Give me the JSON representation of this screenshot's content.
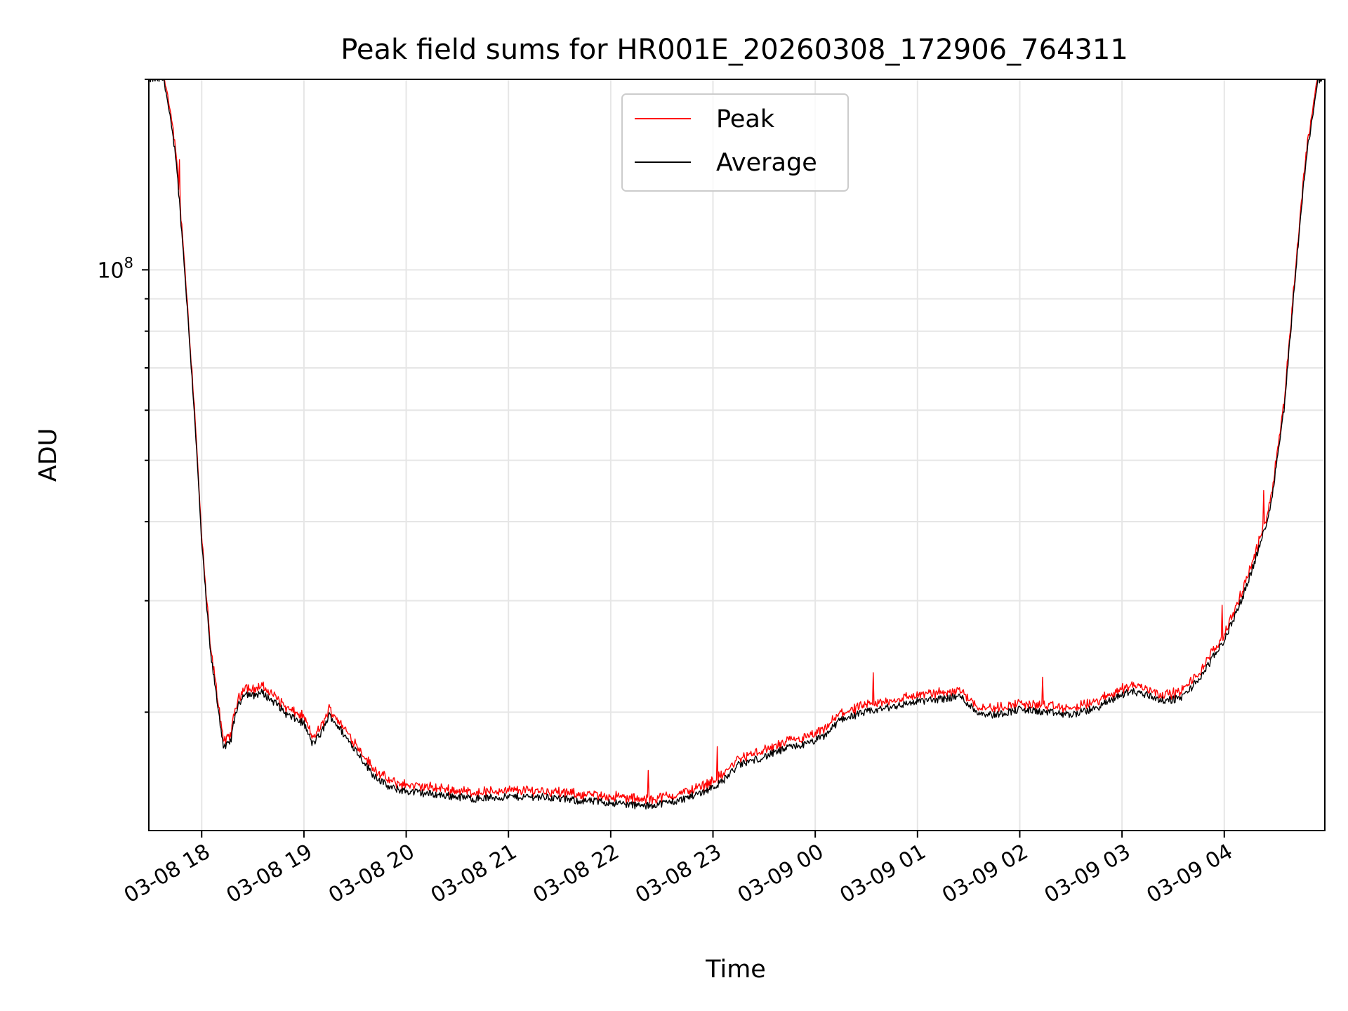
{
  "chart_data": {
    "type": "line",
    "title": "Peak field sums for HR001E_20260308_172906_764311",
    "xlabel": "Time",
    "ylabel": "ADU",
    "y_scale": "log",
    "ylim": [
      13000000,
      200000000
    ],
    "xlim": [
      "2026-03-08T17:29:00",
      "2026-03-09T04:59:00"
    ],
    "x_ticks": [
      {
        "t": "2026-03-08T18:00",
        "label": "03-08 18"
      },
      {
        "t": "2026-03-08T19:00",
        "label": "03-08 19"
      },
      {
        "t": "2026-03-08T20:00",
        "label": "03-08 20"
      },
      {
        "t": "2026-03-08T21:00",
        "label": "03-08 21"
      },
      {
        "t": "2026-03-08T22:00",
        "label": "03-08 22"
      },
      {
        "t": "2026-03-08T23:00",
        "label": "03-08 23"
      },
      {
        "t": "2026-03-09T00:00",
        "label": "03-09 00"
      },
      {
        "t": "2026-03-09T01:00",
        "label": "03-09 01"
      },
      {
        "t": "2026-03-09T02:00",
        "label": "03-09 02"
      },
      {
        "t": "2026-03-09T03:00",
        "label": "03-09 03"
      },
      {
        "t": "2026-03-09T04:00",
        "label": "03-09 04"
      }
    ],
    "y_ticks": [
      {
        "value": 100000000,
        "base": "10",
        "exp": "8"
      }
    ],
    "grid": true,
    "legend": {
      "position": "upper-center"
    },
    "series": [
      {
        "name": "Peak",
        "color": "#ff0000"
      },
      {
        "name": "Average",
        "color": "#000000"
      }
    ],
    "x": [
      "2026-03-08T17:29",
      "2026-03-08T17:38",
      "2026-03-08T17:45",
      "2026-03-08T17:50",
      "2026-03-08T17:56",
      "2026-03-08T18:00",
      "2026-03-08T18:05",
      "2026-03-08T18:10",
      "2026-03-08T18:13",
      "2026-03-08T18:17",
      "2026-03-08T18:20",
      "2026-03-08T18:25",
      "2026-03-08T18:30",
      "2026-03-08T18:35",
      "2026-03-08T18:40",
      "2026-03-08T18:45",
      "2026-03-08T18:50",
      "2026-03-08T18:55",
      "2026-03-08T19:00",
      "2026-03-08T19:05",
      "2026-03-08T19:10",
      "2026-03-08T19:15",
      "2026-03-08T19:20",
      "2026-03-08T19:25",
      "2026-03-08T19:30",
      "2026-03-08T19:40",
      "2026-03-08T19:50",
      "2026-03-08T19:55",
      "2026-03-08T20:00",
      "2026-03-08T20:20",
      "2026-03-08T20:40",
      "2026-03-08T21:00",
      "2026-03-08T21:20",
      "2026-03-08T21:40",
      "2026-03-08T22:00",
      "2026-03-08T22:20",
      "2026-03-08T22:40",
      "2026-03-08T22:55",
      "2026-03-08T23:05",
      "2026-03-08T23:15",
      "2026-03-08T23:30",
      "2026-03-08T23:45",
      "2026-03-08T23:55",
      "2026-03-09T00:05",
      "2026-03-09T00:15",
      "2026-03-09T00:30",
      "2026-03-09T00:45",
      "2026-03-09T01:00",
      "2026-03-09T01:15",
      "2026-03-09T01:25",
      "2026-03-09T01:35",
      "2026-03-09T01:45",
      "2026-03-09T02:00",
      "2026-03-09T02:15",
      "2026-03-09T02:30",
      "2026-03-09T02:45",
      "2026-03-09T02:55",
      "2026-03-09T03:05",
      "2026-03-09T03:15",
      "2026-03-09T03:25",
      "2026-03-09T03:35",
      "2026-03-09T03:45",
      "2026-03-09T04:00",
      "2026-03-09T04:10",
      "2026-03-09T04:20",
      "2026-03-09T04:27",
      "2026-03-09T04:35",
      "2026-03-09T04:42",
      "2026-03-09T04:48",
      "2026-03-09T04:55",
      "2026-03-09T04:59"
    ],
    "values": [
      200000000,
      200000000,
      150000000,
      100000000,
      58000000,
      37000000,
      25000000,
      20000000,
      17500000,
      18000000,
      20000000,
      21500000,
      21200000,
      21500000,
      21000000,
      20500000,
      19800000,
      19500000,
      19200000,
      17800000,
      18500000,
      19800000,
      19000000,
      18200000,
      17500000,
      16000000,
      15200000,
      15100000,
      15000000,
      14800000,
      14600000,
      14700000,
      14700000,
      14500000,
      14400000,
      14200000,
      14500000,
      15000000,
      15500000,
      16500000,
      17000000,
      17600000,
      17800000,
      18300000,
      19500000,
      20000000,
      20400000,
      20800000,
      21000000,
      21200000,
      20000000,
      19800000,
      20200000,
      20000000,
      19800000,
      20300000,
      21000000,
      21600000,
      21300000,
      20800000,
      21100000,
      22500000,
      26000000,
      30000000,
      36000000,
      42000000,
      60000000,
      100000000,
      150000000,
      200000000,
      200000000
    ]
  }
}
